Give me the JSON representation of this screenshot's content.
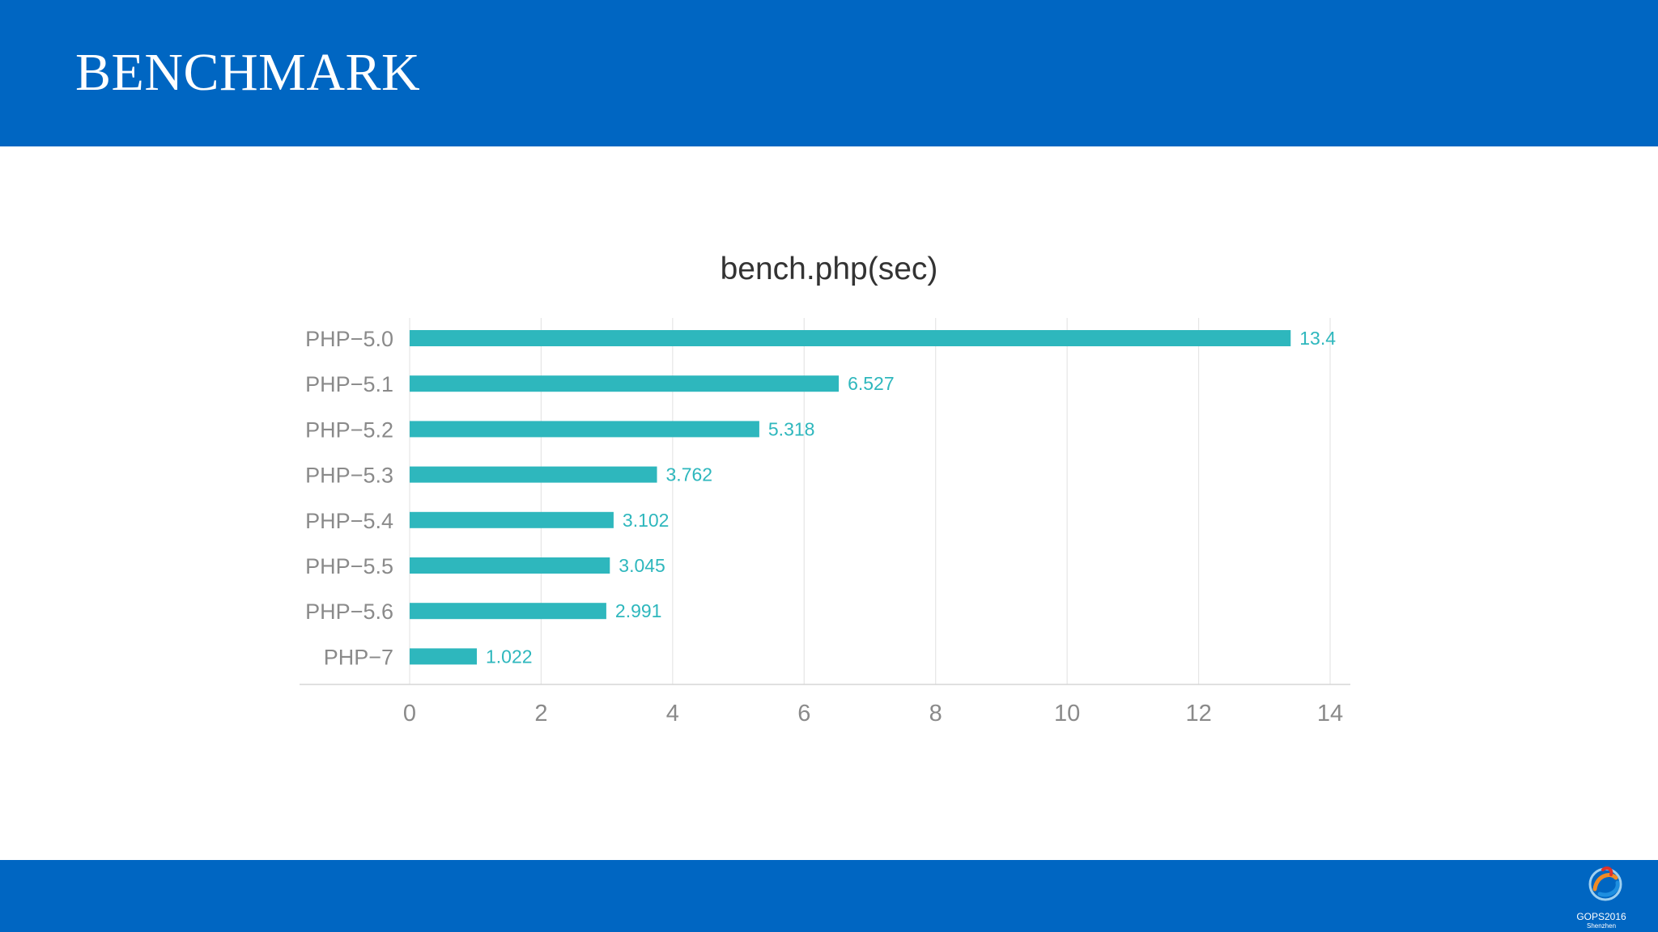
{
  "slide": {
    "title": "BENCHMARK"
  },
  "logo": {
    "text": "GOPS2016",
    "subtext": "Shenzhen"
  },
  "colors": {
    "band": "#0066c2",
    "bar": "#2eb7bd",
    "tick_label": "#8a8a8a",
    "title": "#333333",
    "grid": "#e6e6e6"
  },
  "chart_data": {
    "type": "bar",
    "orientation": "horizontal",
    "title": "bench.php(sec)",
    "categories": [
      "PHP-5.0",
      "PHP-5.1",
      "PHP-5.2",
      "PHP-5.3",
      "PHP-5.4",
      "PHP-5.5",
      "PHP-5.6",
      "PHP-7"
    ],
    "series": [
      {
        "values": [
          13.4,
          6.527,
          5.318,
          3.762,
          3.102,
          3.045,
          2.991,
          1.022
        ],
        "labels": [
          "13.4",
          "6.527",
          "5.318",
          "3.762",
          "3.102",
          "3.045",
          "2.991",
          "1.022"
        ]
      }
    ],
    "xlim": [
      0,
      14
    ],
    "xticks": [
      0,
      2,
      4,
      6,
      8,
      10,
      12,
      14
    ],
    "xlabel": "",
    "ylabel": "",
    "grid": "vertical",
    "legend": "none"
  }
}
